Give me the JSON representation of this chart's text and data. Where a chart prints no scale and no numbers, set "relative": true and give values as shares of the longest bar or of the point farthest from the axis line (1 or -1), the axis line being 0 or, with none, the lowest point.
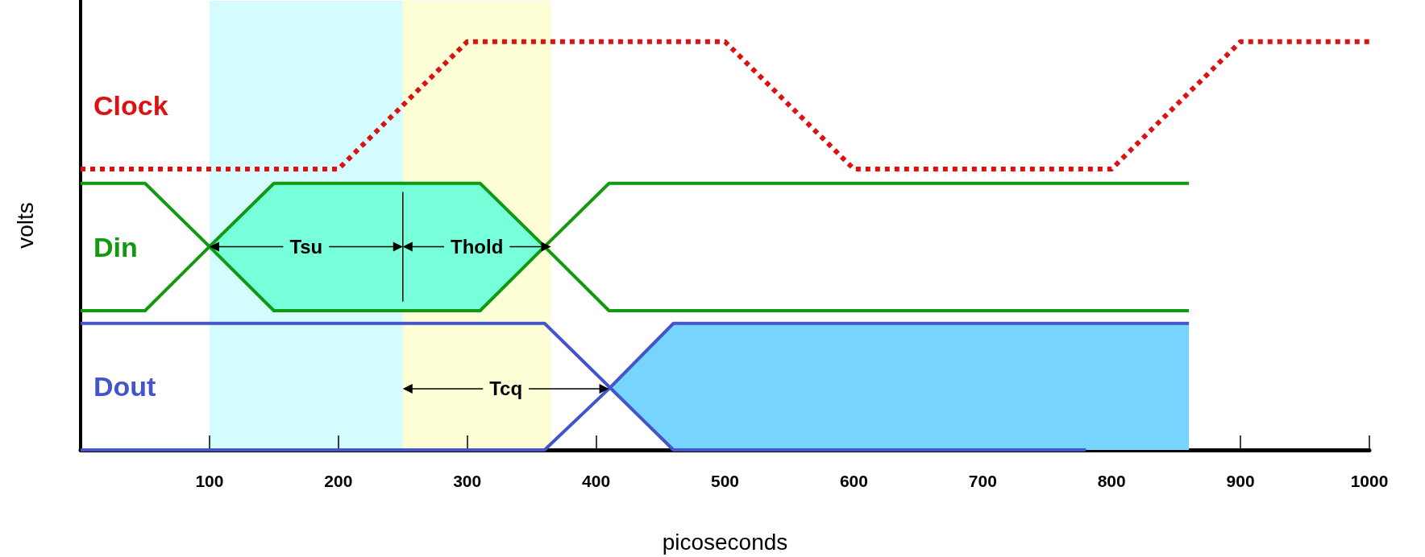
{
  "chart_data": {
    "type": "line",
    "relative": true,
    "xlabel": "picoseconds",
    "ylabel": "volts",
    "xlim": [
      0,
      1000
    ],
    "xticks": [
      100,
      200,
      300,
      400,
      500,
      600,
      700,
      800,
      900,
      1000
    ],
    "series": [
      {
        "name": "Clock",
        "color": "#dd1111",
        "line_style": "dotted",
        "x": [
          0,
          200,
          300,
          500,
          600,
          800,
          900,
          1000
        ],
        "values": [
          0.688,
          0.688,
          1,
          1,
          0.688,
          0.688,
          1,
          1
        ]
      },
      {
        "name": "Din",
        "color": "#119911",
        "line_style": "solid",
        "x": [
          0,
          50,
          100,
          150,
          310,
          360,
          410,
          860
        ],
        "values": [
          0.653,
          0.653,
          0.498,
          0.341,
          0.341,
          0.498,
          0.653,
          0.653
        ]
      },
      {
        "color": "#119911",
        "line_style": "solid",
        "x": [
          0,
          50,
          100,
          150,
          310,
          360,
          410,
          860
        ],
        "values": [
          0.341,
          0.341,
          0.498,
          0.653,
          0.653,
          0.498,
          0.341,
          0.341
        ],
        "lower": [
          null,
          null,
          0.498,
          0.341,
          0.341,
          0.498,
          null,
          null
        ],
        "upper": [
          null,
          null,
          0.498,
          0.653,
          0.653,
          0.498,
          null,
          null
        ]
      },
      {
        "color": "#4455cc",
        "line_style": "solid",
        "x": [
          0,
          360,
          460,
          780
        ],
        "values": [
          0.31,
          0.31,
          0,
          0
        ]
      },
      {
        "name": "Dout",
        "color": "#4455cc",
        "line_style": "solid",
        "x": [
          0,
          360,
          410,
          460,
          860
        ],
        "values": [
          0,
          0,
          0.15,
          0.31,
          0.31
        ],
        "lower": [
          null,
          null,
          0.15,
          0,
          0
        ],
        "upper": [
          null,
          null,
          0.15,
          0.31,
          0.31
        ]
      }
    ],
    "bands": [
      {
        "axis": "x",
        "from": 100,
        "to": 250,
        "color": "#d4fbfd",
        "label": "Tsu"
      },
      {
        "axis": "x",
        "from": 250,
        "to": 365,
        "color": "#fefed6",
        "label": "Thold"
      }
    ],
    "annotations": [
      "Tcq"
    ]
  }
}
